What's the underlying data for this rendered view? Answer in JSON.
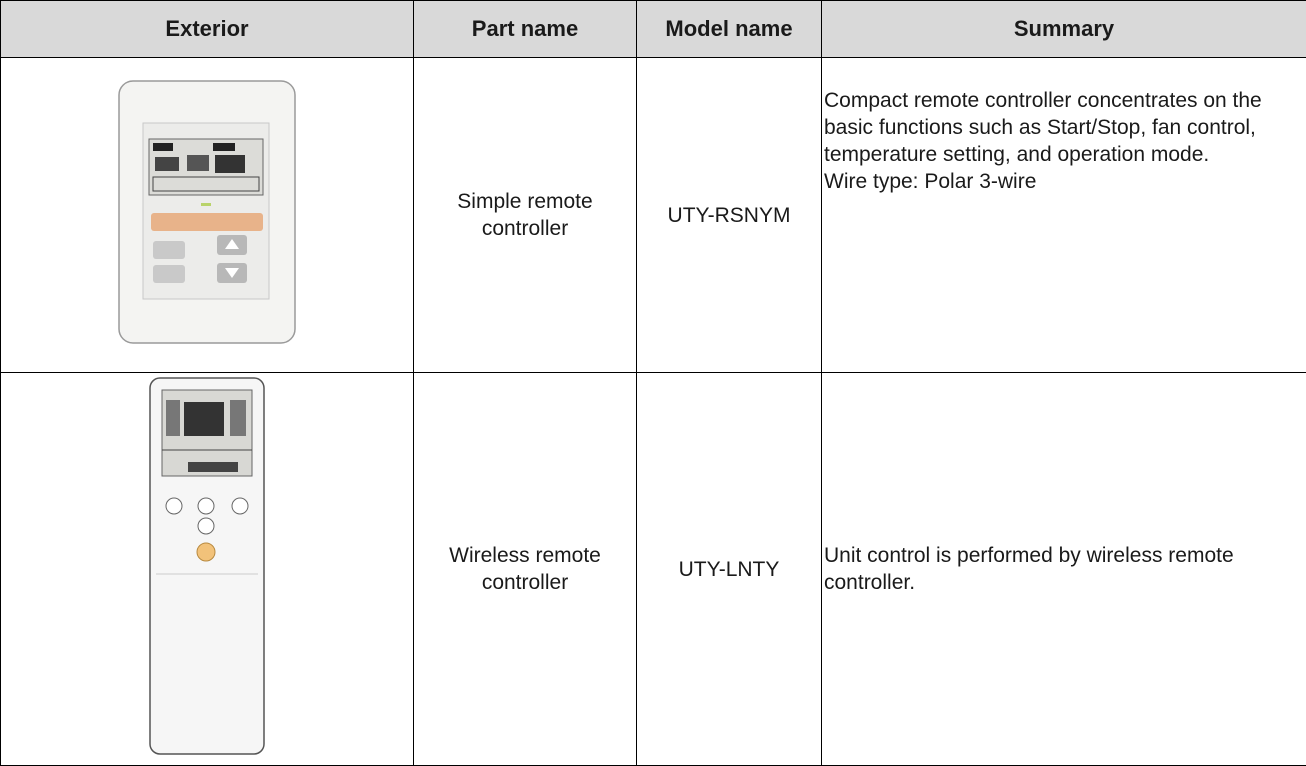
{
  "table": {
    "header": [
      "Exterior",
      "Part name",
      "Model name",
      "Summary"
    ],
    "rows": [
      {
        "part_name": "Simple remote controller",
        "model_name": "UTY-RSNYM",
        "summary": [
          "Compact remote controller concentrates on the basic functions such as Start/Stop, fan control, temperature setting, and operation mode.",
          "Wire type: Polar 3-wire"
        ]
      },
      {
        "part_name": "Wireless remote controller",
        "model_name": "UTY-LNTY",
        "summary": [
          "Unit control is performed by wireless remote controller."
        ]
      }
    ]
  }
}
